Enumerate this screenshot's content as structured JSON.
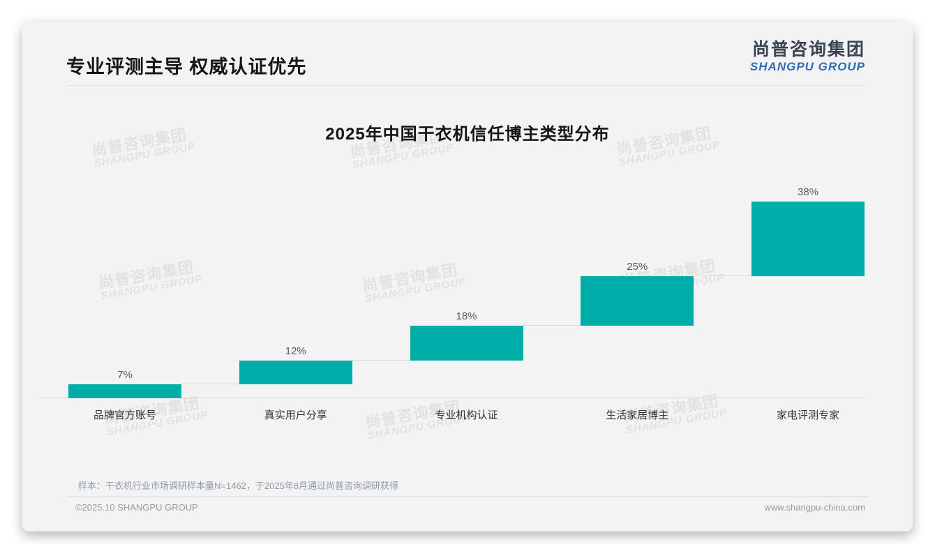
{
  "header": {
    "title": "专业评测主导 权威认证优先"
  },
  "logo": {
    "cn": "尚普咨询集团",
    "en": "SHANGPU GROUP"
  },
  "watermark": {
    "cn": "尚普咨询集团",
    "en": "SHANGPU GROUP"
  },
  "chart_data": {
    "type": "bar",
    "subtype": "staircase-waterfall",
    "title": "2025年中国干衣机信任博主类型分布",
    "categories": [
      "品牌官方账号",
      "真实用户分享",
      "专业机构认证",
      "生活家居博主",
      "家电评测专家"
    ],
    "values": [
      7,
      12,
      18,
      25,
      38
    ],
    "value_labels": [
      "7%",
      "12%",
      "18%",
      "25%",
      "38%"
    ],
    "unit": "%",
    "cumulative": true,
    "ylim": [
      0,
      100
    ],
    "bar_color": "#00AEA9",
    "connector_color": "#dcd8d4",
    "axis_line_color": "#d9d7d5",
    "value_label_color": "#595959",
    "category_label_color": "#333333",
    "grid": false,
    "legend": "none"
  },
  "note": "样本：干衣机行业市场调研样本量N=1462，于2025年8月通过尚普咨询调研获得",
  "footer": {
    "left": "©2025.10 SHANGPU GROUP",
    "right": "www.shangpu-china.com"
  }
}
